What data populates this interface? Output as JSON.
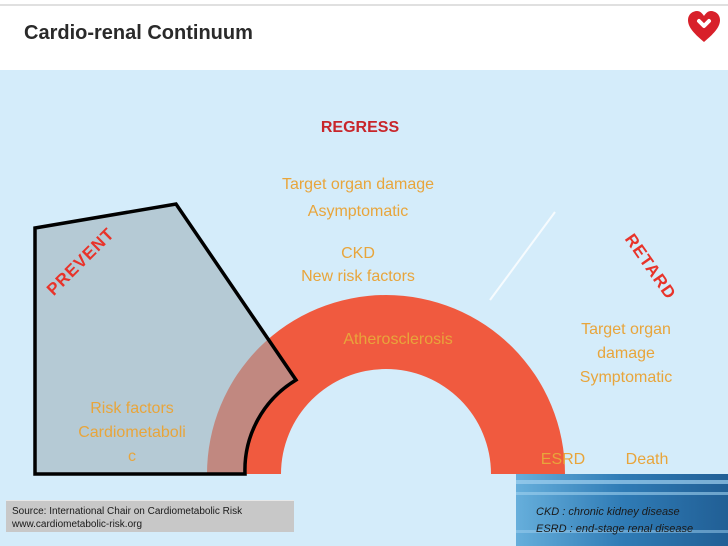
{
  "header": {
    "title": "Cardio-renal Continuum"
  },
  "colors": {
    "arc": "#f05a3f",
    "label": "#e8a53b",
    "arrow_label": "#e8332a",
    "panel": "#d4ecfa",
    "wedge": "#9aafb6"
  },
  "diagram": {
    "regress": "REGRESS",
    "prevent": "PREVENT",
    "retard": "RETARD",
    "target_damage_1": "Target organ damage",
    "asymptomatic": "Asymptomatic",
    "ckd": "CKD",
    "new_risk": "New risk factors",
    "atherosclerosis": "Atherosclerosis",
    "target_damage_2_line1": "Target organ",
    "target_damage_2_line2": "damage",
    "symptomatic": "Symptomatic",
    "risk_factors": "Risk factors",
    "cardiometabolic_line1": "Cardiometaboli",
    "cardiometabolic_line2": "c",
    "esrd": "ESRD",
    "death": "Death"
  },
  "footer": {
    "source_line1": "Source: International Chair on Cardiometabolic Risk",
    "source_line2": "www.cardiometabolic-risk.org",
    "abbr_ckd": "CKD : chronic kidney disease",
    "abbr_esrd": "ESRD : end-stage renal disease"
  }
}
